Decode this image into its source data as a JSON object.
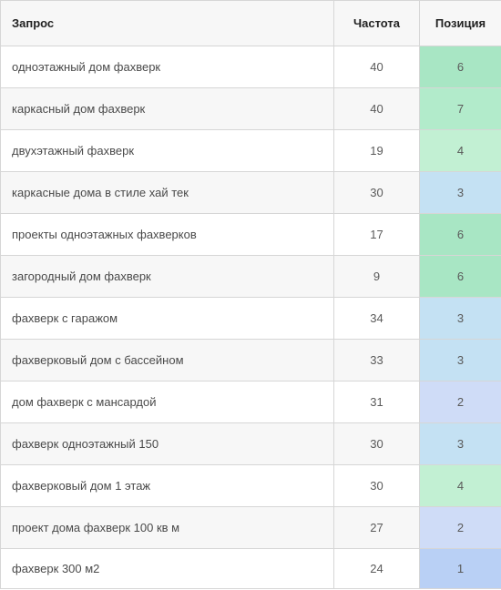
{
  "table": {
    "headers": {
      "query": "Запрос",
      "frequency": "Частота",
      "position": "Позиция"
    },
    "rows": [
      {
        "query": "одноэтажный дом фахверк",
        "frequency": "40",
        "position": "6",
        "color": "#a8e6c4"
      },
      {
        "query": "каркасный дом фахверк",
        "frequency": "40",
        "position": "7",
        "color": "#b2ebcb"
      },
      {
        "query": "двухэтажный фахверк",
        "frequency": "19",
        "position": "4",
        "color": "#c2f0d3"
      },
      {
        "query": "каркасные дома в стиле хай тек",
        "frequency": "30",
        "position": "3",
        "color": "#c4e1f3"
      },
      {
        "query": "проекты одноэтажных фахверков",
        "frequency": "17",
        "position": "6",
        "color": "#a8e6c4"
      },
      {
        "query": "загородный дом фахверк",
        "frequency": "9",
        "position": "6",
        "color": "#a8e6c4"
      },
      {
        "query": "фахверк с гаражом",
        "frequency": "34",
        "position": "3",
        "color": "#c4e1f3"
      },
      {
        "query": "фахверковый дом с бассейном",
        "frequency": "33",
        "position": "3",
        "color": "#c4e1f3"
      },
      {
        "query": "дом фахверк с мансардой",
        "frequency": "31",
        "position": "2",
        "color": "#cfdcf7"
      },
      {
        "query": "фахверк одноэтажный 150",
        "frequency": "30",
        "position": "3",
        "color": "#c4e1f3"
      },
      {
        "query": "фахверковый дом 1 этаж",
        "frequency": "30",
        "position": "4",
        "color": "#c2f0d3"
      },
      {
        "query": "проект дома фахверк 100 кв м",
        "frequency": "27",
        "position": "2",
        "color": "#cfdcf7"
      },
      {
        "query": "фахверк 300 м2",
        "frequency": "24",
        "position": "1",
        "color": "#b9d0f5"
      }
    ]
  }
}
